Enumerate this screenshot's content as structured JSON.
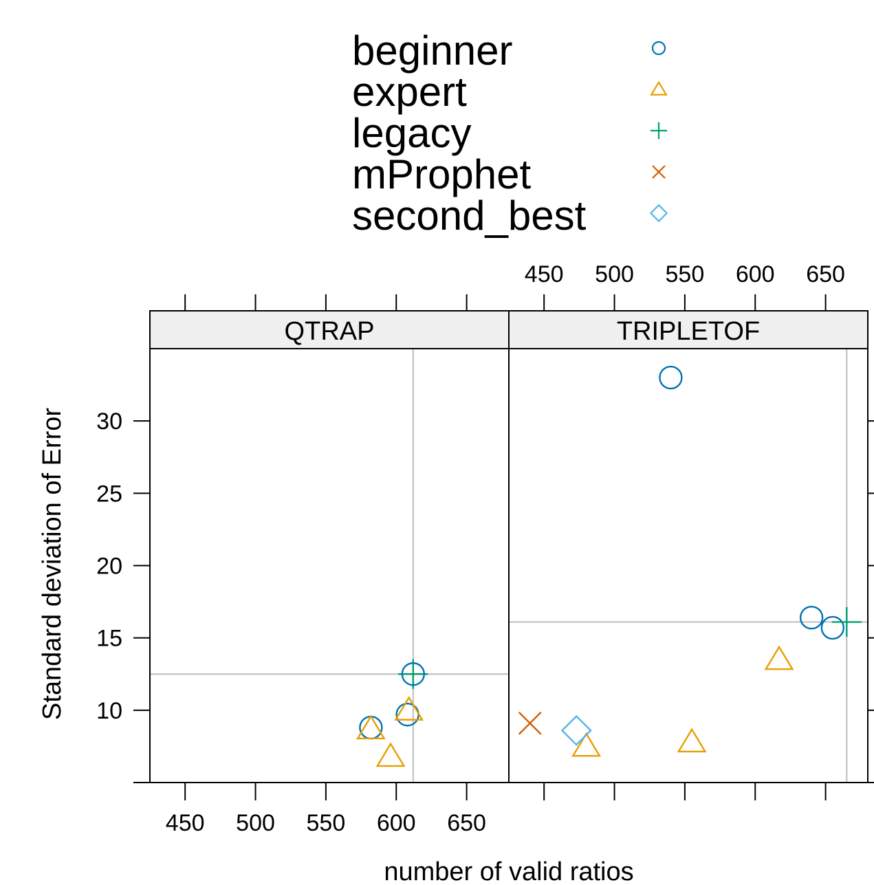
{
  "chart_data": {
    "type": "scatter",
    "xlabel": "number of valid ratios",
    "ylabel": "Standard deviation of Error",
    "xlim": [
      425,
      680
    ],
    "ylim": [
      5,
      35
    ],
    "x_ticks": [
      450,
      500,
      550,
      600,
      650
    ],
    "y_ticks": [
      10,
      15,
      20,
      25,
      30
    ],
    "grid": false,
    "legend_position": "top",
    "legend": [
      {
        "name": "beginner",
        "symbol": "circle",
        "color": "#0072B2"
      },
      {
        "name": "expert",
        "symbol": "triangle",
        "color": "#E69F00"
      },
      {
        "name": "legacy",
        "symbol": "plus",
        "color": "#009E73"
      },
      {
        "name": "mProphet",
        "symbol": "x",
        "color": "#D55E00"
      },
      {
        "name": "second_best",
        "symbol": "diamond",
        "color": "#56B4E9"
      }
    ],
    "panels": [
      {
        "title": "QTRAP",
        "ref_x": 612,
        "ref_y": 12.5,
        "points": [
          {
            "group": "beginner",
            "x": 608,
            "y": 9.7
          },
          {
            "group": "beginner",
            "x": 582,
            "y": 8.8
          },
          {
            "group": "expert",
            "x": 582,
            "y": 8.7
          },
          {
            "group": "expert",
            "x": 609,
            "y": 10.0
          },
          {
            "group": "expert",
            "x": 596,
            "y": 6.8
          },
          {
            "group": "legacy",
            "x": 612,
            "y": 12.5
          },
          {
            "group": "beginner",
            "x": 612,
            "y": 12.5
          }
        ]
      },
      {
        "title": "TRIPLETOF",
        "ref_x": 665,
        "ref_y": 16.1,
        "points": [
          {
            "group": "beginner",
            "x": 540,
            "y": 33.0
          },
          {
            "group": "beginner",
            "x": 640,
            "y": 16.4
          },
          {
            "group": "beginner",
            "x": 655,
            "y": 15.7
          },
          {
            "group": "legacy",
            "x": 665,
            "y": 16.1
          },
          {
            "group": "expert",
            "x": 617,
            "y": 13.5
          },
          {
            "group": "expert",
            "x": 555,
            "y": 7.8
          },
          {
            "group": "expert",
            "x": 480,
            "y": 7.5
          },
          {
            "group": "mProphet",
            "x": 440,
            "y": 9.1
          },
          {
            "group": "second_best",
            "x": 473,
            "y": 8.6
          }
        ]
      }
    ]
  }
}
